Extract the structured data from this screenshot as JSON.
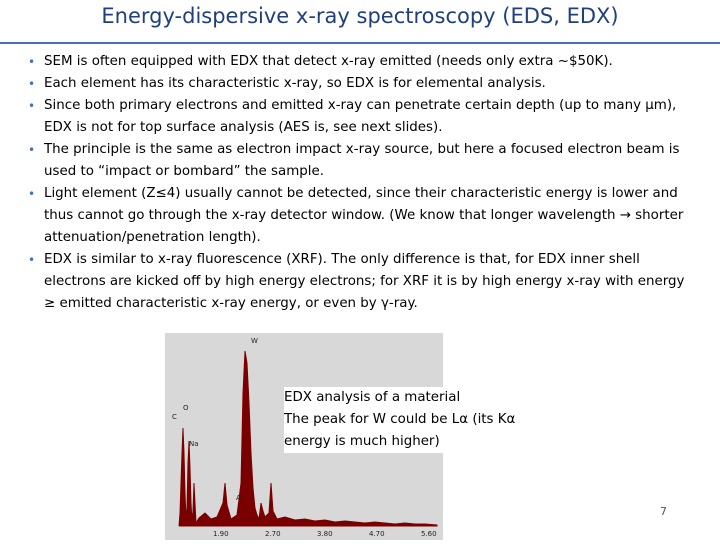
{
  "title": "Energy-dispersive x-ray spectroscopy (EDS, EDX)",
  "bullets": [
    "SEM is often equipped with EDX that detect x-ray emitted (needs only extra ~$50K).",
    "Each element has its characteristic x-ray, so EDX is for elemental analysis.",
    "Since both primary electrons and emitted x-ray can penetrate certain depth (up to many μm), EDX is not for top surface analysis (AES is, see next slides).",
    "The principle is the same as electron impact x-ray source, but here a focused electron beam is used to “impact or bombard” the sample.",
    "Light element (Z≤4) usually cannot be detected, since their characteristic energy is lower and thus cannot go through the x-ray detector window. (We know that longer wavelength → shorter attenuation/penetration length).",
    "EDX is similar to x-ray fluorescence (XRF). The only difference is that, for EDX inner shell electrons are kicked off by high energy electrons; for XRF it is by high energy x-ray with energy ≥ emitted characteristic x-ray energy, or even by γ-ray."
  ],
  "spectrum": {
    "peak_labels": [
      "W",
      "O",
      "C",
      "Na",
      "Al"
    ],
    "axis_ticks": [
      "1.90",
      "2.70",
      "3.80",
      "4.70",
      "5.60"
    ]
  },
  "caption": {
    "line1": "EDX analysis of a material",
    "line2": "The peak for W could be Lα (its Kα",
    "line3": "energy is much higher)"
  },
  "page_number": "7",
  "colors": {
    "title": "#1f3f7f",
    "rule": "#4a6fb0",
    "bullet": "#4a6fb0",
    "spectrum": "#7a0000"
  }
}
